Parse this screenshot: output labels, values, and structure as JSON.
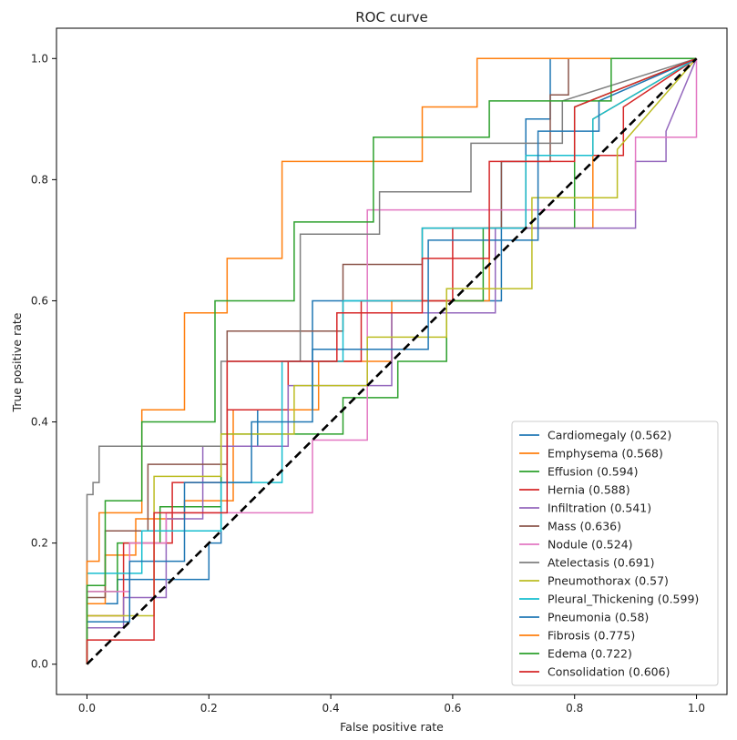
{
  "chart_data": {
    "type": "line",
    "title": "ROC curve",
    "xlabel": "False positive rate",
    "ylabel": "True positive rate",
    "xlim": [
      -0.05,
      1.05
    ],
    "ylim": [
      -0.05,
      1.05
    ],
    "xticks": [
      0.0,
      0.2,
      0.4,
      0.6,
      0.8,
      1.0
    ],
    "yticks": [
      0.0,
      0.2,
      0.4,
      0.6,
      0.8,
      1.0
    ],
    "xtick_labels": [
      "0.0",
      "0.2",
      "0.4",
      "0.6",
      "0.8",
      "1.0"
    ],
    "ytick_labels": [
      "0.0",
      "0.2",
      "0.4",
      "0.6",
      "0.8",
      "1.0"
    ],
    "legend_position": "bottom-right",
    "diagonal": {
      "x": [
        0,
        1
      ],
      "y": [
        0,
        1
      ],
      "color": "#000000",
      "style": "dashed"
    },
    "series": [
      {
        "name": "Cardiomegaly (0.562)",
        "color": "#1f77b4",
        "x": [
          0,
          0,
          0.05,
          0.05,
          0.2,
          0.2,
          0.22,
          0.22,
          0.28,
          0.28,
          0.37,
          0.37,
          0.68,
          0.68,
          0.72,
          0.72,
          0.76,
          0.76,
          1
        ],
        "y": [
          0,
          0.1,
          0.1,
          0.14,
          0.14,
          0.2,
          0.2,
          0.36,
          0.36,
          0.42,
          0.42,
          0.6,
          0.6,
          0.83,
          0.83,
          0.9,
          0.9,
          1,
          1
        ]
      },
      {
        "name": "Emphysema (0.568)",
        "color": "#ff7f0e",
        "x": [
          0,
          0,
          0.03,
          0.03,
          0.08,
          0.08,
          0.16,
          0.16,
          0.24,
          0.24,
          0.38,
          0.38,
          0.5,
          0.5,
          0.66,
          0.66,
          0.83,
          0.83,
          1
        ],
        "y": [
          0,
          0.1,
          0.1,
          0.18,
          0.18,
          0.24,
          0.24,
          0.27,
          0.27,
          0.42,
          0.42,
          0.5,
          0.5,
          0.6,
          0.6,
          0.72,
          0.72,
          0.9,
          1
        ]
      },
      {
        "name": "Effusion (0.594)",
        "color": "#2ca02c",
        "x": [
          0,
          0,
          0.05,
          0.05,
          0.12,
          0.12,
          0.22,
          0.22,
          0.42,
          0.42,
          0.51,
          0.51,
          0.59,
          0.59,
          0.65,
          0.65,
          0.8,
          0.8,
          1
        ],
        "y": [
          0,
          0.12,
          0.12,
          0.2,
          0.2,
          0.26,
          0.26,
          0.38,
          0.38,
          0.44,
          0.44,
          0.5,
          0.5,
          0.6,
          0.6,
          0.72,
          0.72,
          0.92,
          1
        ]
      },
      {
        "name": "Hernia (0.588)",
        "color": "#d62728",
        "x": [
          0,
          0,
          0.06,
          0.06,
          0.14,
          0.14,
          0.23,
          0.23,
          0.33,
          0.33,
          0.45,
          0.45,
          0.6,
          0.6,
          0.72,
          0.72,
          0.88,
          0.88,
          1
        ],
        "y": [
          0,
          0.08,
          0.08,
          0.2,
          0.2,
          0.3,
          0.3,
          0.42,
          0.42,
          0.5,
          0.5,
          0.6,
          0.6,
          0.72,
          0.72,
          0.84,
          0.84,
          0.92,
          1
        ]
      },
      {
        "name": "Infiltration (0.541)",
        "color": "#9467bd",
        "x": [
          0,
          0,
          0.06,
          0.06,
          0.13,
          0.13,
          0.19,
          0.19,
          0.33,
          0.33,
          0.5,
          0.5,
          0.67,
          0.67,
          0.9,
          0.9,
          0.95,
          0.95,
          1
        ],
        "y": [
          0,
          0.06,
          0.06,
          0.11,
          0.11,
          0.24,
          0.24,
          0.36,
          0.36,
          0.46,
          0.46,
          0.58,
          0.58,
          0.72,
          0.72,
          0.83,
          0.83,
          0.88,
          1
        ]
      },
      {
        "name": "Mass (0.636)",
        "color": "#8c564b",
        "x": [
          0,
          0,
          0.03,
          0.03,
          0.1,
          0.1,
          0.23,
          0.23,
          0.42,
          0.42,
          0.55,
          0.55,
          0.68,
          0.68,
          0.76,
          0.76,
          0.79,
          0.79,
          1
        ],
        "y": [
          0,
          0.11,
          0.11,
          0.22,
          0.22,
          0.33,
          0.33,
          0.55,
          0.55,
          0.66,
          0.66,
          0.72,
          0.72,
          0.83,
          0.83,
          0.94,
          0.94,
          1,
          1
        ]
      },
      {
        "name": "Nodule (0.524)",
        "color": "#e377c2",
        "x": [
          0,
          0,
          0.07,
          0.07,
          0.13,
          0.13,
          0.37,
          0.37,
          0.46,
          0.46,
          0.59,
          0.59,
          0.9,
          0.9,
          1,
          1
        ],
        "y": [
          0,
          0.12,
          0.12,
          0.2,
          0.2,
          0.25,
          0.25,
          0.37,
          0.37,
          0.75,
          0.75,
          0.75,
          0.75,
          0.87,
          0.87,
          1
        ]
      },
      {
        "name": "Atelectasis (0.691)",
        "color": "#7f7f7f",
        "x": [
          0,
          0,
          0.01,
          0.01,
          0.02,
          0.02,
          0.22,
          0.22,
          0.35,
          0.35,
          0.48,
          0.48,
          0.63,
          0.63,
          0.78,
          0.78,
          1
        ],
        "y": [
          0,
          0.28,
          0.28,
          0.3,
          0.3,
          0.36,
          0.36,
          0.5,
          0.5,
          0.71,
          0.71,
          0.78,
          0.78,
          0.86,
          0.86,
          0.93,
          1
        ]
      },
      {
        "name": "Pneumothorax (0.57)",
        "color": "#bcbd22",
        "x": [
          0,
          0,
          0.11,
          0.11,
          0.22,
          0.22,
          0.34,
          0.34,
          0.46,
          0.46,
          0.59,
          0.59,
          0.73,
          0.73,
          0.87,
          0.87,
          1
        ],
        "y": [
          0,
          0.08,
          0.08,
          0.31,
          0.31,
          0.38,
          0.38,
          0.46,
          0.46,
          0.54,
          0.54,
          0.62,
          0.62,
          0.77,
          0.77,
          0.85,
          1
        ]
      },
      {
        "name": "Pleural_Thickening (0.599)",
        "color": "#17becf",
        "x": [
          0,
          0,
          0.09,
          0.09,
          0.22,
          0.22,
          0.32,
          0.32,
          0.42,
          0.42,
          0.55,
          0.55,
          0.72,
          0.72,
          0.83,
          0.83,
          1
        ],
        "y": [
          0,
          0.15,
          0.15,
          0.22,
          0.22,
          0.3,
          0.3,
          0.5,
          0.5,
          0.6,
          0.6,
          0.72,
          0.72,
          0.84,
          0.84,
          0.9,
          1
        ]
      },
      {
        "name": "Pneumonia (0.58)",
        "color": "#1f77b4",
        "x": [
          0,
          0,
          0.07,
          0.07,
          0.16,
          0.16,
          0.27,
          0.27,
          0.37,
          0.37,
          0.56,
          0.56,
          0.74,
          0.74,
          0.84,
          0.84,
          1
        ],
        "y": [
          0,
          0.07,
          0.07,
          0.17,
          0.17,
          0.3,
          0.3,
          0.4,
          0.4,
          0.52,
          0.52,
          0.7,
          0.7,
          0.88,
          0.88,
          0.93,
          1
        ]
      },
      {
        "name": "Fibrosis (0.775)",
        "color": "#ff7f0e",
        "x": [
          0,
          0,
          0.02,
          0.02,
          0.09,
          0.09,
          0.16,
          0.16,
          0.23,
          0.23,
          0.32,
          0.32,
          0.55,
          0.55,
          0.64,
          0.64,
          1
        ],
        "y": [
          0,
          0.17,
          0.17,
          0.25,
          0.25,
          0.42,
          0.42,
          0.58,
          0.58,
          0.67,
          0.67,
          0.83,
          0.83,
          0.92,
          0.92,
          1,
          1
        ]
      },
      {
        "name": "Edema (0.722)",
        "color": "#2ca02c",
        "x": [
          0,
          0,
          0.03,
          0.03,
          0.09,
          0.09,
          0.21,
          0.21,
          0.34,
          0.34,
          0.47,
          0.47,
          0.6,
          0.6,
          0.66,
          0.66,
          0.86,
          0.86,
          1
        ],
        "y": [
          0,
          0.13,
          0.13,
          0.27,
          0.27,
          0.4,
          0.4,
          0.6,
          0.6,
          0.73,
          0.73,
          0.87,
          0.87,
          0.87,
          0.87,
          0.93,
          0.93,
          1,
          1
        ]
      },
      {
        "name": "Consolidation (0.606)",
        "color": "#d62728",
        "x": [
          0,
          0,
          0.11,
          0.11,
          0.23,
          0.23,
          0.41,
          0.41,
          0.55,
          0.55,
          0.66,
          0.66,
          0.8,
          0.8,
          1
        ],
        "y": [
          0,
          0.04,
          0.04,
          0.25,
          0.25,
          0.5,
          0.5,
          0.58,
          0.58,
          0.67,
          0.67,
          0.83,
          0.83,
          0.92,
          1
        ]
      }
    ]
  }
}
